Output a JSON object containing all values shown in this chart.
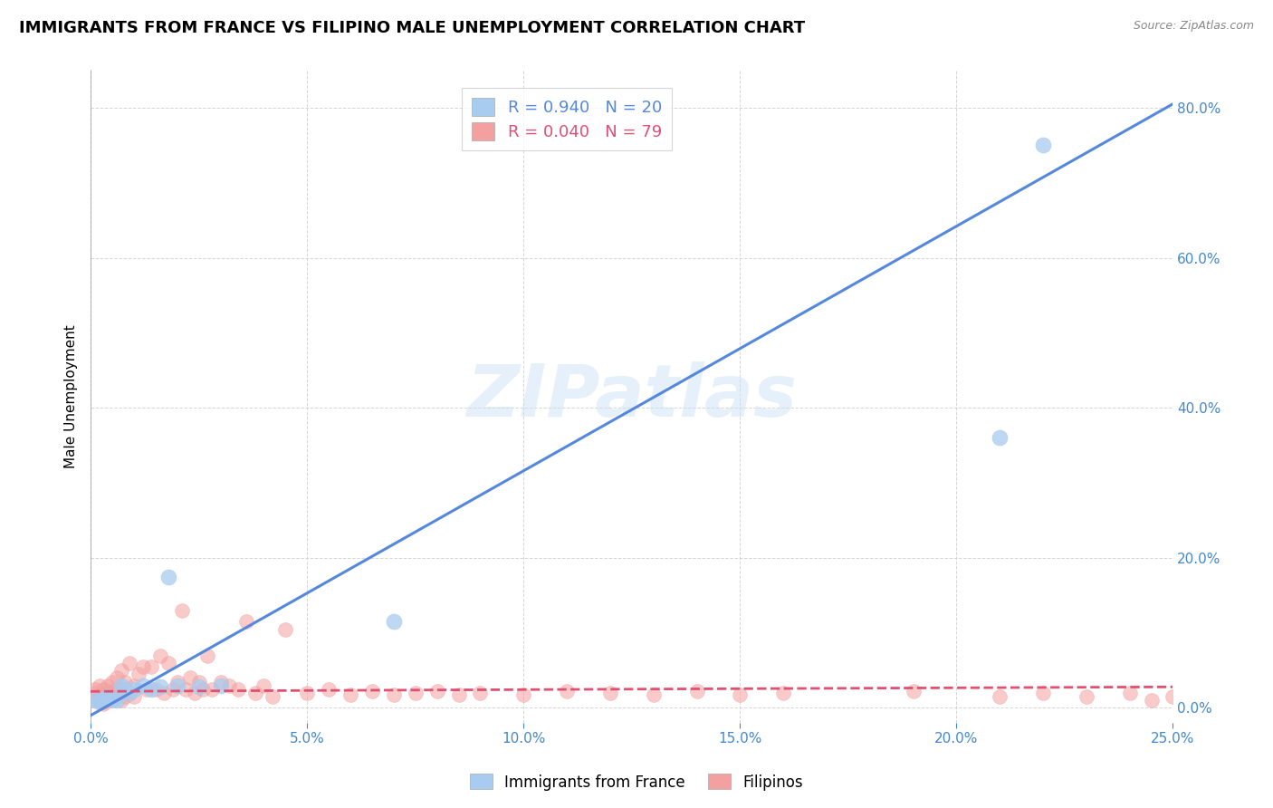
{
  "title": "IMMIGRANTS FROM FRANCE VS FILIPINO MALE UNEMPLOYMENT CORRELATION CHART",
  "source": "Source: ZipAtlas.com",
  "ylabel": "Male Unemployment",
  "xlim": [
    0.0,
    0.25
  ],
  "ylim": [
    -0.02,
    0.85
  ],
  "x_ticks": [
    0.0,
    0.05,
    0.1,
    0.15,
    0.2,
    0.25
  ],
  "x_tick_labels": [
    "0.0%",
    "5.0%",
    "10.0%",
    "15.0%",
    "20.0%",
    "25.0%"
  ],
  "y_ticks": [
    0.0,
    0.2,
    0.4,
    0.6,
    0.8
  ],
  "y_tick_labels": [
    "0.0%",
    "20.0%",
    "40.0%",
    "60.0%",
    "80.0%"
  ],
  "blue_color": "#A8CCF0",
  "pink_color": "#F4A0A0",
  "blue_line_color": "#5588DD",
  "pink_line_color": "#E05070",
  "legend_label_blue": "Immigrants from France",
  "legend_label_pink": "Filipinos",
  "watermark": "ZIPatlas",
  "title_fontsize": 13,
  "axis_tick_color": "#4488CC",
  "blue_scatter_x": [
    0.001,
    0.002,
    0.003,
    0.004,
    0.005,
    0.006,
    0.007,
    0.008,
    0.009,
    0.01,
    0.012,
    0.014,
    0.016,
    0.018,
    0.02,
    0.025,
    0.03,
    0.07,
    0.21,
    0.22
  ],
  "blue_scatter_y": [
    0.01,
    0.008,
    0.012,
    0.015,
    0.012,
    0.01,
    0.03,
    0.025,
    0.02,
    0.025,
    0.03,
    0.025,
    0.028,
    0.175,
    0.03,
    0.028,
    0.03,
    0.115,
    0.36,
    0.75
  ],
  "blue_line_x0": 0.0,
  "blue_line_x1": 0.25,
  "blue_line_y0": -0.01,
  "blue_line_y1": 0.805,
  "pink_line_x0": 0.0,
  "pink_line_x1": 0.25,
  "pink_line_y0": 0.022,
  "pink_line_y1": 0.028,
  "pink_line_dash": true,
  "pink_scatter_x": [
    0.001,
    0.001,
    0.001,
    0.002,
    0.002,
    0.002,
    0.003,
    0.003,
    0.003,
    0.003,
    0.004,
    0.004,
    0.004,
    0.004,
    0.005,
    0.005,
    0.005,
    0.006,
    0.006,
    0.006,
    0.007,
    0.007,
    0.007,
    0.008,
    0.008,
    0.008,
    0.009,
    0.009,
    0.01,
    0.01,
    0.011,
    0.012,
    0.013,
    0.014,
    0.015,
    0.016,
    0.017,
    0.018,
    0.019,
    0.02,
    0.021,
    0.022,
    0.023,
    0.024,
    0.025,
    0.026,
    0.027,
    0.028,
    0.03,
    0.032,
    0.034,
    0.036,
    0.038,
    0.04,
    0.042,
    0.045,
    0.05,
    0.055,
    0.06,
    0.065,
    0.07,
    0.075,
    0.08,
    0.085,
    0.09,
    0.1,
    0.11,
    0.12,
    0.13,
    0.14,
    0.15,
    0.16,
    0.19,
    0.21,
    0.22,
    0.23,
    0.24,
    0.245,
    0.25
  ],
  "pink_scatter_y": [
    0.01,
    0.02,
    0.025,
    0.01,
    0.015,
    0.03,
    0.008,
    0.018,
    0.025,
    0.005,
    0.012,
    0.022,
    0.03,
    0.015,
    0.01,
    0.02,
    0.035,
    0.015,
    0.025,
    0.04,
    0.01,
    0.02,
    0.05,
    0.015,
    0.025,
    0.035,
    0.02,
    0.06,
    0.015,
    0.03,
    0.045,
    0.055,
    0.025,
    0.055,
    0.025,
    0.07,
    0.02,
    0.06,
    0.025,
    0.035,
    0.13,
    0.025,
    0.04,
    0.02,
    0.035,
    0.025,
    0.07,
    0.025,
    0.035,
    0.03,
    0.025,
    0.115,
    0.02,
    0.03,
    0.015,
    0.105,
    0.02,
    0.025,
    0.018,
    0.022,
    0.018,
    0.02,
    0.022,
    0.018,
    0.02,
    0.018,
    0.022,
    0.02,
    0.018,
    0.022,
    0.018,
    0.02,
    0.022,
    0.015,
    0.02,
    0.015,
    0.02,
    0.01,
    0.015
  ]
}
